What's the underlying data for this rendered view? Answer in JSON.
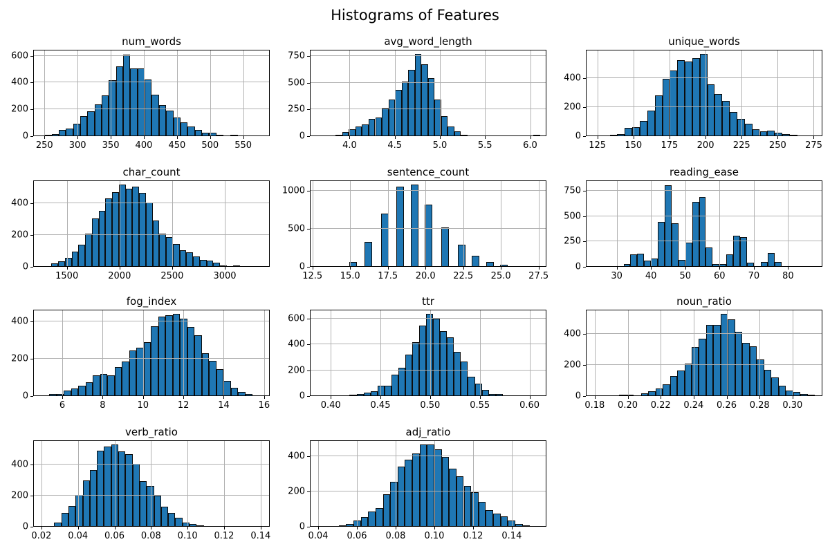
{
  "figure": {
    "title": "Histograms of Features"
  },
  "colors": {
    "bar_fill": "#1f77b4",
    "bar_edge": "#0c0c0c",
    "grid": "#b0b0b0",
    "axis": "#000000",
    "background": "#ffffff",
    "text": "#000000"
  },
  "chart_data": [
    {
      "type": "bar",
      "title": "num_words",
      "row": 0,
      "col": 0,
      "xlim": [
        233,
        590
      ],
      "ylim": [
        0,
        645
      ],
      "xtick_pos": [
        250,
        300,
        350,
        400,
        450,
        500,
        550
      ],
      "xtick_labels": [
        "250",
        "300",
        "350",
        "400",
        "450",
        "500",
        "550"
      ],
      "ytick_pos": [
        0,
        200,
        400,
        600
      ],
      "ytick_labels": [
        "0",
        "200",
        "400",
        "600"
      ],
      "bins": {
        "start": 250,
        "width": 10.8
      },
      "values": [
        8,
        15,
        45,
        55,
        95,
        150,
        185,
        240,
        305,
        420,
        520,
        610,
        505,
        505,
        425,
        310,
        230,
        190,
        140,
        105,
        70,
        45,
        25,
        28,
        8,
        5,
        8,
        5,
        3,
        3
      ]
    },
    {
      "type": "bar",
      "title": "avg_word_length",
      "row": 0,
      "col": 1,
      "xlim": [
        3.56,
        6.18
      ],
      "ylim": [
        0,
        808
      ],
      "xtick_pos": [
        4.0,
        4.5,
        5.0,
        5.5,
        6.0
      ],
      "xtick_labels": [
        "4.0",
        "4.5",
        "5.0",
        "5.5",
        "6.0"
      ],
      "ytick_pos": [
        0,
        250,
        500,
        750
      ],
      "ytick_labels": [
        "0",
        "250",
        "500",
        "750"
      ],
      "bins": {
        "start": 3.7,
        "width": 0.073
      },
      "values": [
        5,
        8,
        12,
        40,
        65,
        90,
        110,
        160,
        175,
        265,
        345,
        430,
        510,
        620,
        770,
        675,
        545,
        340,
        185,
        90,
        45,
        15,
        8,
        5,
        0,
        0,
        0,
        0,
        0,
        0,
        0,
        0,
        10
      ]
    },
    {
      "type": "bar",
      "title": "unique_words",
      "row": 0,
      "col": 2,
      "xlim": [
        117,
        281
      ],
      "ylim": [
        0,
        595
      ],
      "xtick_pos": [
        125,
        150,
        175,
        200,
        225,
        250,
        275
      ],
      "xtick_labels": [
        "125",
        "150",
        "175",
        "200",
        "225",
        "250",
        "275"
      ],
      "ytick_pos": [
        0,
        200,
        400
      ],
      "ytick_labels": [
        "0",
        "200",
        "400"
      ],
      "bins": {
        "start": 118,
        "width": 5.2
      },
      "values": [
        5,
        3,
        0,
        8,
        15,
        55,
        60,
        105,
        175,
        280,
        395,
        450,
        525,
        515,
        540,
        565,
        355,
        290,
        245,
        165,
        120,
        85,
        50,
        35,
        40,
        25,
        15,
        8,
        0,
        5
      ]
    },
    {
      "type": "bar",
      "title": "char_count",
      "row": 1,
      "col": 0,
      "xlim": [
        1180,
        3427
      ],
      "ylim": [
        0,
        542
      ],
      "xtick_pos": [
        1500,
        2000,
        2500,
        3000
      ],
      "xtick_labels": [
        "1500",
        "2000",
        "2500",
        "3000"
      ],
      "ytick_pos": [
        0,
        200,
        400
      ],
      "ytick_labels": [
        "0",
        "200",
        "400"
      ],
      "bins": {
        "start": 1290,
        "width": 64
      },
      "values": [
        5,
        20,
        35,
        55,
        95,
        140,
        210,
        305,
        350,
        430,
        470,
        515,
        490,
        505,
        465,
        405,
        290,
        210,
        185,
        145,
        105,
        90,
        65,
        45,
        40,
        25,
        10,
        5,
        8,
        3
      ]
    },
    {
      "type": "bar",
      "title": "sentence_count",
      "row": 1,
      "col": 1,
      "xlim": [
        12.33,
        28.02
      ],
      "ylim": [
        0,
        1136
      ],
      "xtick_pos": [
        12.5,
        15.0,
        17.5,
        20.0,
        22.5,
        25.0,
        27.5
      ],
      "xtick_labels": [
        "12.5",
        "15.0",
        "17.5",
        "20.0",
        "22.5",
        "25.0",
        "27.5"
      ],
      "ytick_pos": [
        0,
        500,
        1000
      ],
      "ytick_labels": [
        "0",
        "500",
        "1000"
      ],
      "bars": {
        "centers": [
          13.5,
          14.3,
          15.2,
          16.2,
          17.3,
          18.3,
          19.3,
          20.2,
          21.3,
          22.4,
          23.3,
          24.3,
          25.2,
          26.2,
          27.2
        ],
        "width": 0.5
      },
      "values": [
        4,
        12,
        65,
        330,
        700,
        1050,
        1080,
        820,
        520,
        290,
        150,
        60,
        28,
        10,
        8
      ]
    },
    {
      "type": "bar",
      "title": "reading_ease",
      "row": 1,
      "col": 2,
      "xlim": [
        21,
        90
      ],
      "ylim": [
        0,
        852
      ],
      "xtick_pos": [
        30,
        40,
        50,
        60,
        70,
        80
      ],
      "xtick_labels": [
        "30",
        "40",
        "50",
        "60",
        "70",
        "80"
      ],
      "ytick_pos": [
        0,
        250,
        500,
        750
      ],
      "ytick_labels": [
        "0",
        "250",
        "500",
        "750"
      ],
      "bins": {
        "start": 26,
        "width": 2
      },
      "values": [
        8,
        8,
        0,
        30,
        120,
        130,
        62,
        85,
        440,
        805,
        430,
        65,
        240,
        640,
        690,
        190,
        25,
        25,
        125,
        310,
        290,
        40,
        0,
        45,
        135,
        50,
        0,
        5,
        8,
        8
      ]
    },
    {
      "type": "bar",
      "title": "fog_index",
      "row": 2,
      "col": 0,
      "xlim": [
        4.56,
        16.28
      ],
      "ylim": [
        0,
        463
      ],
      "xtick_pos": [
        6,
        8,
        10,
        12,
        14,
        16
      ],
      "xtick_labels": [
        "6",
        "8",
        "10",
        "12",
        "14",
        "16"
      ],
      "ytick_pos": [
        0,
        200,
        400
      ],
      "ytick_labels": [
        "0",
        "200",
        "400"
      ],
      "bins": {
        "start": 5.0,
        "width": 0.36
      },
      "values": [
        5,
        12,
        10,
        30,
        42,
        55,
        75,
        110,
        118,
        112,
        155,
        185,
        245,
        260,
        290,
        375,
        425,
        435,
        440,
        415,
        370,
        325,
        230,
        190,
        145,
        80,
        45,
        22,
        10,
        5
      ]
    },
    {
      "type": "bar",
      "title": "ttr",
      "row": 2,
      "col": 1,
      "xlim": [
        0.379,
        0.617
      ],
      "ylim": [
        0,
        668
      ],
      "xtick_pos": [
        0.4,
        0.45,
        0.5,
        0.55,
        0.6
      ],
      "xtick_labels": [
        "0.40",
        "0.45",
        "0.50",
        "0.55",
        "0.60"
      ],
      "ytick_pos": [
        0,
        200,
        400,
        600
      ],
      "ytick_labels": [
        "0",
        "200",
        "400",
        "600"
      ],
      "bins": {
        "start": 0.398,
        "width": 0.007
      },
      "values": [
        3,
        5,
        8,
        10,
        15,
        25,
        40,
        78,
        80,
        165,
        220,
        320,
        415,
        545,
        635,
        600,
        505,
        455,
        340,
        265,
        150,
        95,
        50,
        18,
        15,
        8,
        3
      ]
    },
    {
      "type": "bar",
      "title": "noun_ratio",
      "row": 2,
      "col": 2,
      "xlim": [
        0.1746,
        0.3181
      ],
      "ylim": [
        0,
        557
      ],
      "xtick_pos": [
        0.18,
        0.2,
        0.22,
        0.24,
        0.26,
        0.28,
        0.3
      ],
      "xtick_labels": [
        "0.18",
        "0.20",
        "0.22",
        "0.24",
        "0.26",
        "0.28",
        "0.30"
      ],
      "ytick_pos": [
        0,
        200,
        400
      ],
      "ytick_labels": [
        "0",
        "200",
        "400"
      ],
      "bins": {
        "start": 0.186,
        "width": 0.0044
      },
      "values": [
        4,
        6,
        8,
        10,
        5,
        20,
        30,
        50,
        75,
        130,
        165,
        210,
        315,
        370,
        460,
        460,
        530,
        495,
        415,
        345,
        320,
        235,
        170,
        120,
        65,
        35,
        25,
        15,
        8,
        5
      ]
    },
    {
      "type": "bar",
      "title": "verb_ratio",
      "row": 3,
      "col": 0,
      "xlim": [
        0.0155,
        0.145
      ],
      "ylim": [
        0,
        557
      ],
      "xtick_pos": [
        0.02,
        0.04,
        0.06,
        0.08,
        0.1,
        0.12,
        0.14
      ],
      "xtick_labels": [
        "0.02",
        "0.04",
        "0.06",
        "0.08",
        "0.10",
        "0.12",
        "0.14"
      ],
      "ytick_pos": [
        0,
        200,
        400
      ],
      "ytick_labels": [
        "0",
        "200",
        "400"
      ],
      "bins": {
        "start": 0.027,
        "width": 0.0039
      },
      "values": [
        25,
        90,
        135,
        205,
        300,
        365,
        490,
        515,
        530,
        485,
        470,
        405,
        295,
        265,
        200,
        130,
        90,
        60,
        25,
        20,
        8,
        5
      ]
    },
    {
      "type": "bar",
      "title": "adj_ratio",
      "row": 3,
      "col": 1,
      "xlim": [
        0.0357,
        0.1579
      ],
      "ylim": [
        0,
        489
      ],
      "xtick_pos": [
        0.04,
        0.06,
        0.08,
        0.1,
        0.12,
        0.14
      ],
      "xtick_labels": [
        "0.04",
        "0.06",
        "0.08",
        "0.10",
        "0.12",
        "0.14"
      ],
      "ytick_pos": [
        0,
        200,
        400
      ],
      "ytick_labels": [
        "0",
        "200",
        "400"
      ],
      "bins": {
        "start": 0.043,
        "width": 0.0038
      },
      "values": [
        5,
        0,
        8,
        15,
        35,
        55,
        85,
        105,
        185,
        255,
        340,
        380,
        415,
        465,
        465,
        440,
        395,
        330,
        285,
        230,
        195,
        140,
        95,
        75,
        60,
        35,
        15,
        8
      ]
    }
  ]
}
